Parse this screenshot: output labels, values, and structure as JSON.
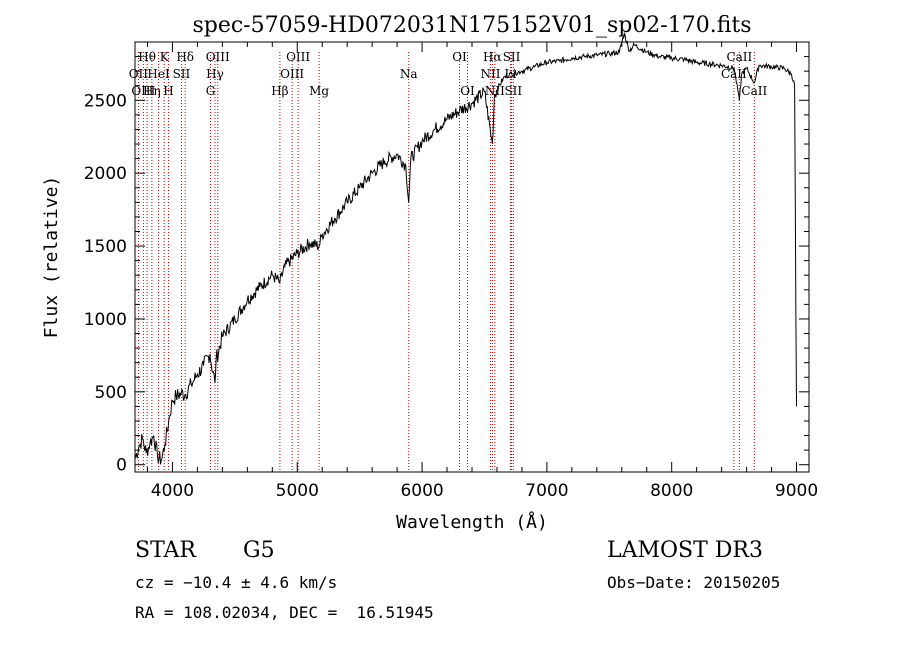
{
  "chart_data": {
    "type": "line",
    "title": "spec-57059-HD072031N175152V01_sp02-170.fits",
    "xlabel": "Wavelength (Å)",
    "ylabel": "Flux (relative)",
    "xlim": [
      3700,
      9100
    ],
    "ylim": [
      -50,
      2900
    ],
    "x_ticks": [
      4000,
      5000,
      6000,
      7000,
      8000,
      9000
    ],
    "x_tick_labels": [
      "4000",
      "5000",
      "6000",
      "7000",
      "8000",
      "9000"
    ],
    "y_ticks": [
      0,
      500,
      1000,
      1500,
      2000,
      2500
    ],
    "y_tick_labels": [
      "0",
      "500",
      "1000",
      "1500",
      "2000",
      "2500"
    ],
    "grid": false,
    "series": [
      {
        "name": "flux",
        "color": "#000000",
        "x": [
          3700,
          3730,
          3760,
          3790,
          3820,
          3850,
          3880,
          3910,
          3940,
          3970,
          4000,
          4030,
          4070,
          4100,
          4150,
          4200,
          4250,
          4300,
          4340,
          4350,
          4400,
          4500,
          4600,
          4700,
          4800,
          4861,
          4900,
          5000,
          5100,
          5175,
          5200,
          5300,
          5400,
          5500,
          5600,
          5700,
          5800,
          5870,
          5893,
          5910,
          6000,
          6100,
          6200,
          6300,
          6400,
          6500,
          6563,
          6580,
          6650,
          6700,
          6800,
          6900,
          7000,
          7100,
          7200,
          7300,
          7400,
          7500,
          7580,
          7620,
          7660,
          7700,
          7800,
          7900,
          8000,
          8100,
          8200,
          8300,
          8400,
          8500,
          8542,
          8560,
          8600,
          8662,
          8700,
          8800,
          8900,
          8960,
          8985,
          8995,
          9000
        ],
        "y": [
          40,
          120,
          180,
          80,
          150,
          200,
          60,
          30,
          140,
          300,
          440,
          470,
          490,
          480,
          550,
          620,
          680,
          760,
          560,
          720,
          880,
          1000,
          1130,
          1220,
          1300,
          1250,
          1360,
          1450,
          1520,
          1500,
          1580,
          1690,
          1800,
          1900,
          2000,
          2080,
          2130,
          2050,
          1800,
          2100,
          2220,
          2300,
          2370,
          2430,
          2480,
          2560,
          2200,
          2540,
          2650,
          2680,
          2700,
          2730,
          2760,
          2770,
          2790,
          2800,
          2810,
          2820,
          2830,
          2960,
          2840,
          2880,
          2830,
          2800,
          2790,
          2780,
          2760,
          2750,
          2740,
          2720,
          2500,
          2680,
          2720,
          2620,
          2740,
          2730,
          2720,
          2680,
          2600,
          1000,
          400
        ]
      }
    ],
    "lines": [
      {
        "label": "Hθ",
        "x": 3797,
        "row": 0
      },
      {
        "label": "OII",
        "x": 3727,
        "row": 1
      },
      {
        "label": "OIII",
        "x": 3767,
        "row": 2
      },
      {
        "label": "K",
        "x": 3934,
        "row": 0
      },
      {
        "label": "HeI",
        "x": 3889,
        "row": 1
      },
      {
        "label": "Hη",
        "x": 3835,
        "row": 2
      },
      {
        "label": "SII",
        "x": 4072,
        "row": 1
      },
      {
        "label": "H",
        "x": 3968,
        "row": 2
      },
      {
        "label": "Hδ",
        "x": 4102,
        "row": 0
      },
      {
        "label": "OIII",
        "x": 4363,
        "row": 0
      },
      {
        "label": "Hγ",
        "x": 4341,
        "row": 1
      },
      {
        "label": "G",
        "x": 4305,
        "row": 2
      },
      {
        "label": "Hβ",
        "x": 4861,
        "row": 2
      },
      {
        "label": "OIII",
        "x": 5007,
        "row": 0
      },
      {
        "label": "OIII",
        "x": 4959,
        "row": 1
      },
      {
        "label": "Mg",
        "x": 5175,
        "row": 2
      },
      {
        "label": "Na",
        "x": 5893,
        "row": 1
      },
      {
        "label": "OI",
        "x": 6300,
        "row": 0
      },
      {
        "label": "OI",
        "x": 6364,
        "row": 2
      },
      {
        "label": "Hα",
        "x": 6563,
        "row": 0
      },
      {
        "label": "NII",
        "x": 6548,
        "row": 1
      },
      {
        "label": "NII",
        "x": 6583,
        "row": 2
      },
      {
        "label": "SII",
        "x": 6717,
        "row": 0
      },
      {
        "label": "Li",
        "x": 6708,
        "row": 1
      },
      {
        "label": "SII",
        "x": 6731,
        "row": 2
      },
      {
        "label": "CaII",
        "x": 8542,
        "row": 0
      },
      {
        "label": "CaII",
        "x": 8498,
        "row": 1
      },
      {
        "label": "CaII",
        "x": 8662,
        "row": 2
      }
    ],
    "line_marker_color": "#c00000"
  },
  "footer": {
    "object_class": "STAR",
    "subclass": "G5",
    "survey": "LAMOST DR3",
    "cz": "cz = −10.4 ± 4.6 km/s",
    "obs_date": "Obs−Date: 20150205",
    "coords": "RA = 108.02034, DEC =  16.51945"
  }
}
